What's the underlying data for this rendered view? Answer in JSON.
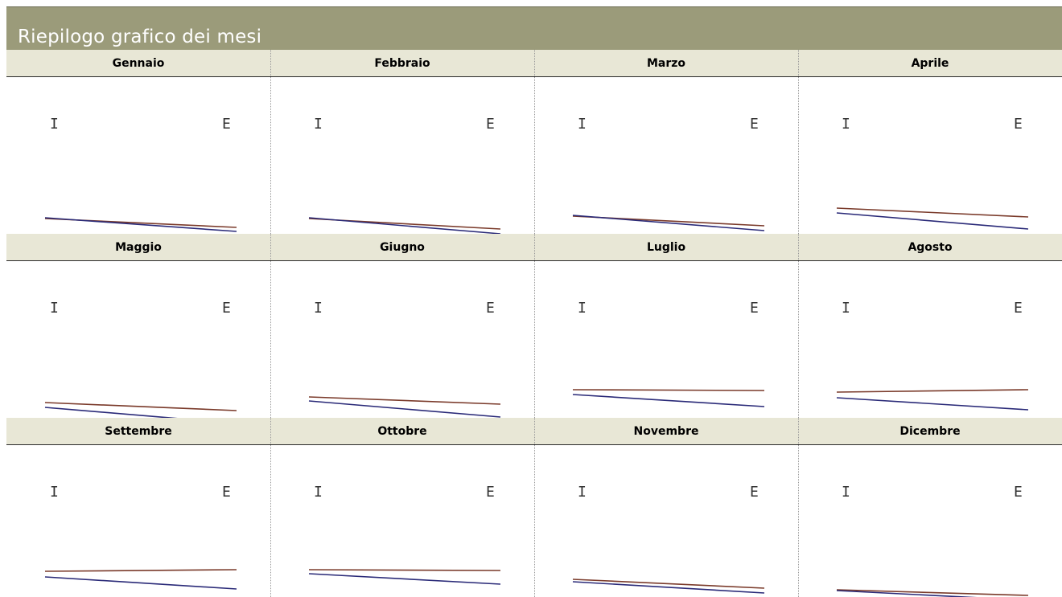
{
  "header": {
    "title": "Riepilogo grafico dei mesi"
  },
  "colors": {
    "entrate": "#7a3a2a",
    "uscite": "#2a2a78",
    "header_bg": "#9b9b7a",
    "subheader_bg": "#e8e7d6"
  },
  "chart_data": {
    "type": "line",
    "x": [
      "I",
      "E"
    ],
    "ylim": [
      0,
      100
    ],
    "charts": [
      {
        "month": "Gennaio",
        "series": [
          {
            "values": [
              40,
              29
            ]
          },
          {
            "values": [
              41,
              24
            ]
          }
        ]
      },
      {
        "month": "Febbraio",
        "series": [
          {
            "values": [
              40,
              27
            ]
          },
          {
            "values": [
              41,
              21
            ]
          }
        ]
      },
      {
        "month": "Marzo",
        "series": [
          {
            "values": [
              43,
              31
            ]
          },
          {
            "values": [
              44,
              25
            ]
          }
        ]
      },
      {
        "month": "Aprile",
        "series": [
          {
            "values": [
              53,
              42
            ]
          },
          {
            "values": [
              47,
              27
            ]
          }
        ]
      },
      {
        "month": "Maggio",
        "series": [
          {
            "values": [
              40,
              30
            ]
          },
          {
            "values": [
              34,
              14
            ]
          }
        ]
      },
      {
        "month": "Giugno",
        "series": [
          {
            "values": [
              47,
              38
            ]
          },
          {
            "values": [
              42,
              22
            ]
          }
        ]
      },
      {
        "month": "Luglio",
        "series": [
          {
            "values": [
              56,
              55
            ]
          },
          {
            "values": [
              50,
              35
            ]
          }
        ]
      },
      {
        "month": "Agosto",
        "series": [
          {
            "values": [
              53,
              56
            ]
          },
          {
            "values": [
              46,
              31
            ]
          }
        ]
      },
      {
        "month": "Settembre",
        "series": [
          {
            "values": [
              59,
              61
            ]
          },
          {
            "values": [
              52,
              37
            ]
          }
        ]
      },
      {
        "month": "Ottobre",
        "series": [
          {
            "values": [
              61,
              60
            ]
          },
          {
            "values": [
              56,
              43
            ]
          }
        ]
      },
      {
        "month": "Novembre",
        "series": [
          {
            "values": [
              49,
              38
            ]
          },
          {
            "values": [
              46,
              32
            ]
          }
        ]
      },
      {
        "month": "Dicembre",
        "series": [
          {
            "values": [
              36,
              29
            ]
          },
          {
            "values": [
              35,
              23
            ]
          }
        ]
      }
    ]
  }
}
